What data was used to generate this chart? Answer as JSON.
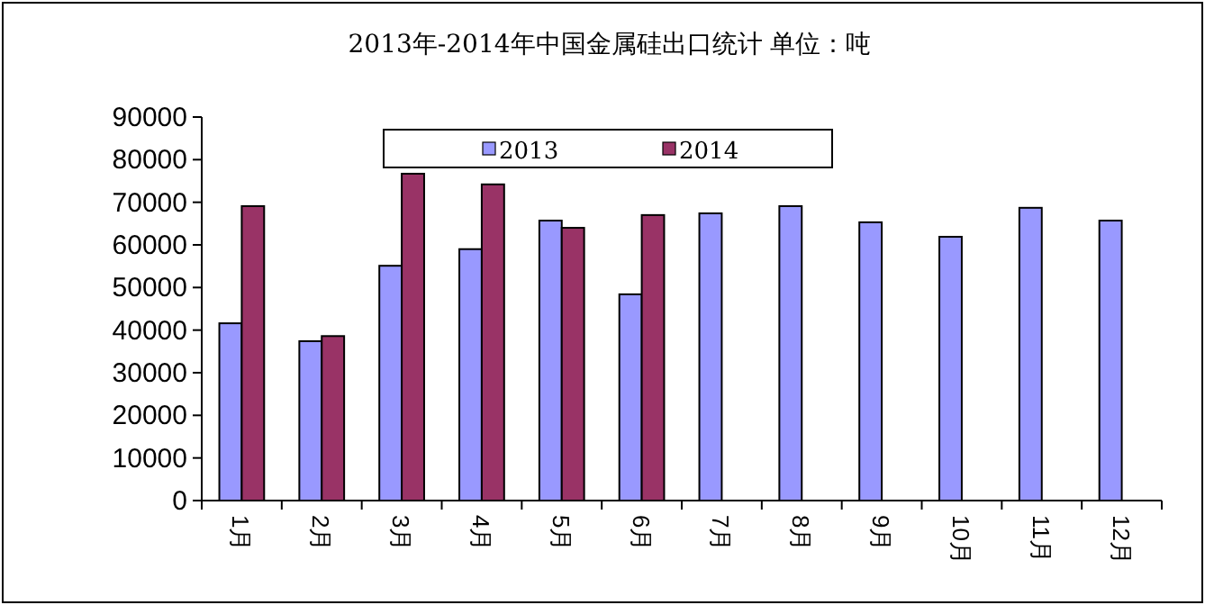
{
  "chart_data": {
    "type": "bar",
    "title": "2013年-2014年中国金属硅出口统计  单位：吨",
    "categories": [
      "1月",
      "2月",
      "3月",
      "4月",
      "5月",
      "6月",
      "7月",
      "8月",
      "9月",
      "10月",
      "11月",
      "12月"
    ],
    "series": [
      {
        "name": "2013",
        "color": "#9999ff",
        "values": [
          41600,
          37400,
          55100,
          59000,
          65700,
          48400,
          67400,
          69100,
          65300,
          61900,
          68700,
          65700
        ]
      },
      {
        "name": "2014",
        "color": "#993366",
        "values": [
          69100,
          38600,
          76700,
          74200,
          64000,
          67000,
          null,
          null,
          null,
          null,
          null,
          null
        ]
      }
    ],
    "ylim": [
      0,
      90000
    ],
    "yticks": [
      0,
      10000,
      20000,
      30000,
      40000,
      50000,
      60000,
      70000,
      80000,
      90000
    ],
    "legend": "top"
  }
}
